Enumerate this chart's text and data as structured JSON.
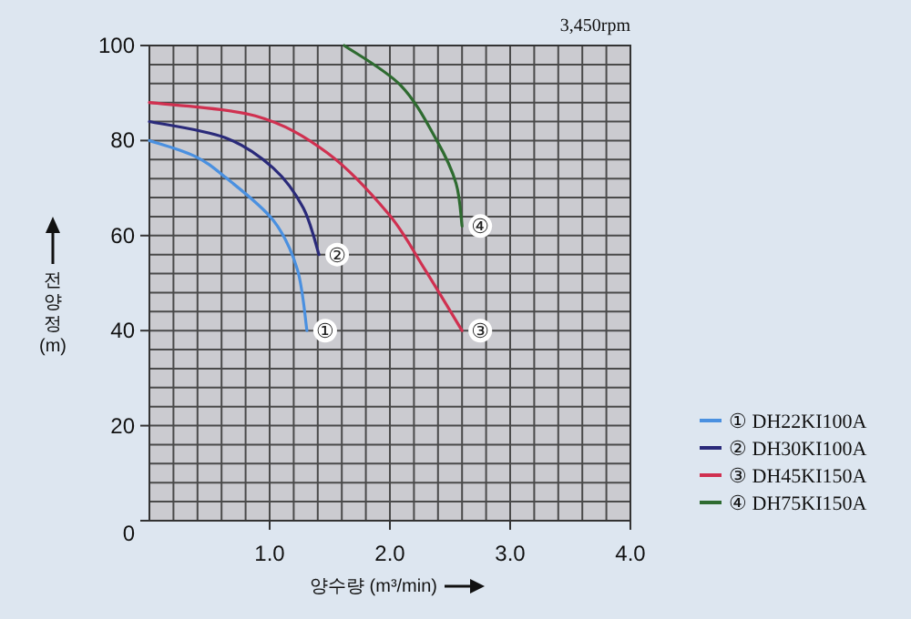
{
  "chart_data": {
    "type": "line",
    "xlabel": "양수량 (m³/min)",
    "ylabel": "전양정 (m)",
    "annotations": [
      "3,450rpm",
      {
        "text": "①",
        "x": 1.31,
        "y": 40
      },
      {
        "text": "②",
        "x": 1.41,
        "y": 56
      },
      {
        "text": "③",
        "x": 2.6,
        "y": 40
      },
      {
        "text": "④",
        "x": 2.6,
        "y": 62
      }
    ],
    "xlim": [
      0,
      4
    ],
    "ylim": [
      0,
      100
    ],
    "xticks": [
      {
        "value": 0.2,
        "label": null
      },
      {
        "value": 0.4,
        "label": null
      },
      {
        "value": 0.6,
        "label": null
      },
      {
        "value": 0.8,
        "label": null
      },
      {
        "value": 1,
        "label": "1.0"
      },
      {
        "value": 1.2,
        "label": null
      },
      {
        "value": 1.4,
        "label": null
      },
      {
        "value": 1.6,
        "label": null
      },
      {
        "value": 1.8,
        "label": null
      },
      {
        "value": 2,
        "label": "2.0"
      },
      {
        "value": 2.2,
        "label": null
      },
      {
        "value": 2.4,
        "label": null
      },
      {
        "value": 2.6,
        "label": null
      },
      {
        "value": 2.8,
        "label": null
      },
      {
        "value": 3,
        "label": "3.0"
      },
      {
        "value": 3.2,
        "label": null
      },
      {
        "value": 3.4,
        "label": null
      },
      {
        "value": 3.6,
        "label": null
      },
      {
        "value": 3.8,
        "label": null
      },
      {
        "value": 4,
        "label": "4.0"
      }
    ],
    "yticks": [
      0,
      {
        "value": 4,
        "label": null
      },
      {
        "value": 8,
        "label": null
      },
      {
        "value": 12,
        "label": null
      },
      {
        "value": 16,
        "label": null
      },
      20,
      {
        "value": 24,
        "label": null
      },
      {
        "value": 28,
        "label": null
      },
      {
        "value": 32,
        "label": null
      },
      {
        "value": 36,
        "label": null
      },
      40,
      {
        "value": 44,
        "label": null
      },
      {
        "value": 48,
        "label": null
      },
      {
        "value": 52,
        "label": null
      },
      {
        "value": 56,
        "label": null
      },
      60,
      {
        "value": 64,
        "label": null
      },
      {
        "value": 68,
        "label": null
      },
      {
        "value": 72,
        "label": null
      },
      {
        "value": 76,
        "label": null
      },
      80,
      {
        "value": 84,
        "label": null
      },
      {
        "value": 88,
        "label": null
      },
      {
        "value": 92,
        "label": null
      },
      {
        "value": 96,
        "label": null
      },
      100
    ],
    "grid": true,
    "legend": "right",
    "line_style": "solid",
    "series": [
      {
        "name": "① DH22KI100A",
        "color": "#4a90e0",
        "x": [
          0,
          0.37,
          0.63,
          1.03,
          1.23,
          1.31
        ],
        "values": [
          80,
          76.8,
          72.3,
          63.2,
          52.9,
          40
        ]
      },
      {
        "name": "② DH30KI100A",
        "color": "#2a2a7a",
        "x": [
          0,
          0.63,
          1.03,
          1.28,
          1.41
        ],
        "values": [
          84,
          80.6,
          74.2,
          65.8,
          56
        ]
      },
      {
        "name": "③ DH45KI150A",
        "color": "#d03050",
        "x": [
          0,
          0.88,
          1.48,
          1.99,
          2.29,
          2.6
        ],
        "values": [
          88,
          85.2,
          77.4,
          64.5,
          52.9,
          40
        ]
      },
      {
        "name": "④ DH75KI150A",
        "color": "#2e6b30",
        "x": [
          1.62,
          2.09,
          2.39,
          2.55,
          2.6
        ],
        "values": [
          100,
          91.6,
          80,
          71,
          62
        ]
      }
    ]
  }
}
